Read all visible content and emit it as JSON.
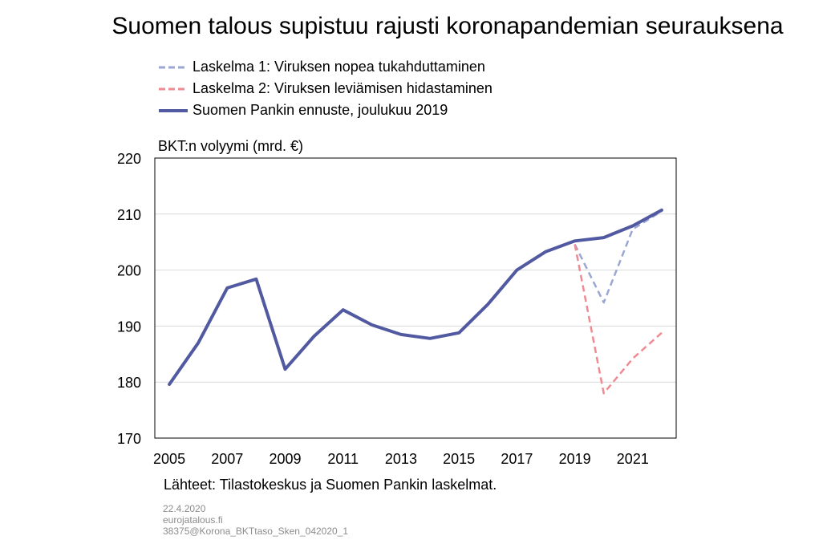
{
  "chart_data": {
    "type": "line",
    "title": "Suomen talous supistuu rajusti koronapandemian seurauksena",
    "ylabel": "BKT:n volyymi (mrd. €)",
    "xlabel": "",
    "xlim": [
      2004.5,
      2022.5
    ],
    "ylim": [
      170,
      220
    ],
    "yticks": [
      170,
      180,
      190,
      200,
      210,
      220
    ],
    "xticks": [
      2005,
      2007,
      2009,
      2011,
      2013,
      2015,
      2017,
      2019,
      2021
    ],
    "grid": "horizontal",
    "legend_position": "top",
    "series": [
      {
        "name": "Laskelma 1: Viruksen nopea tukahduttaminen",
        "style": "dashed",
        "color": "#9ba6d3",
        "x": [
          2019,
          2020,
          2021,
          2022
        ],
        "y": [
          204.6,
          194.2,
          207.3,
          210.5
        ]
      },
      {
        "name": "Laskelma 2: Viruksen leviämisen hidastaminen",
        "style": "dashed",
        "color": "#ef8a93",
        "x": [
          2019,
          2020,
          2021,
          2022
        ],
        "y": [
          204.6,
          178.0,
          184.2,
          188.8
        ]
      },
      {
        "name": "Suomen Pankin ennuste, joulukuu 2019",
        "style": "solid",
        "color": "#5159a1",
        "x": [
          2005,
          2006,
          2007,
          2008,
          2009,
          2010,
          2011,
          2012,
          2013,
          2014,
          2015,
          2016,
          2017,
          2018,
          2019,
          2020,
          2021,
          2022
        ],
        "y": [
          179.6,
          187.0,
          196.8,
          198.4,
          182.3,
          188.2,
          192.9,
          190.2,
          188.5,
          187.8,
          188.8,
          193.9,
          200.0,
          203.3,
          205.2,
          205.8,
          207.9,
          210.7
        ]
      }
    ],
    "source": "Lähteet: Tilastokeskus ja Suomen Pankin laskelmat."
  },
  "footer": {
    "date": "22.4.2020",
    "site": "eurojatalous.fi",
    "code": "38375@Korona_BKTtaso_Sken_042020_1"
  }
}
